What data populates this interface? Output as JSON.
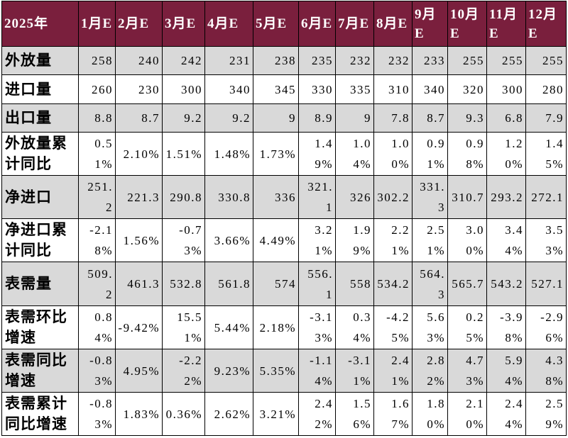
{
  "chart_data": {
    "type": "table",
    "columns": [
      "2025年",
      "1月E",
      "2月E",
      "3月E",
      "4月E",
      "5月E",
      "6月E",
      "7月E",
      "8月E",
      "9月E",
      "10月E",
      "11月E",
      "12月E"
    ],
    "rows": [
      {
        "label": "外放量",
        "values": [
          "258",
          "240",
          "242",
          "231",
          "238",
          "235",
          "232",
          "232",
          "233",
          "255",
          "255",
          "255"
        ]
      },
      {
        "label": "进口量",
        "values": [
          "260",
          "230",
          "300",
          "340",
          "345",
          "330",
          "335",
          "310",
          "340",
          "320",
          "300",
          "280"
        ]
      },
      {
        "label": "出口量",
        "values": [
          "8.8",
          "8.7",
          "9.2",
          "9.2",
          "9",
          "8.9",
          "9",
          "7.8",
          "8.7",
          "9.3",
          "6.8",
          "7.9"
        ]
      },
      {
        "label": "外放量累计同比",
        "values": [
          "0.51%",
          "2.10%",
          "1.51%",
          "1.48%",
          "1.73%",
          "1.49%",
          "1.04%",
          "1.00%",
          "0.91%",
          "0.98%",
          "1.20%",
          "1.45%"
        ]
      },
      {
        "label": "净进口",
        "values": [
          "251.2",
          "221.3",
          "290.8",
          "330.8",
          "336",
          "321.1",
          "326",
          "302.2",
          "331.3",
          "310.7",
          "293.2",
          "272.1"
        ]
      },
      {
        "label": "净进口累计同比",
        "values": [
          "-2.18%",
          "1.56%",
          "-0.73%",
          "3.66%",
          "4.49%",
          "3.21%",
          "1.99%",
          "2.21%",
          "2.51%",
          "3.00%",
          "3.44%",
          "3.53%"
        ]
      },
      {
        "label": "表需量",
        "values": [
          "509.2",
          "461.3",
          "532.8",
          "561.8",
          "574",
          "556.1",
          "558",
          "534.2",
          "564.3",
          "565.7",
          "543.2",
          "527.1"
        ]
      },
      {
        "label": "表需环比增速",
        "values": [
          "0.84%",
          "-9.42%",
          "15.51%",
          "5.44%",
          "2.18%",
          "-3.13%",
          "0.34%",
          "-4.25%",
          "5.63%",
          "0.25%",
          "-3.98%",
          "-2.96%"
        ]
      },
      {
        "label": "表需同比增速",
        "values": [
          "-0.83%",
          "4.95%",
          "-2.22%",
          "9.23%",
          "5.35%",
          "-1.14%",
          "-3.11%",
          "2.41%",
          "2.82%",
          "4.73%",
          "5.94%",
          "4.38%"
        ]
      },
      {
        "label": "表需累计同比增速",
        "values": [
          "-0.83%",
          "1.83%",
          "0.36%",
          "2.62%",
          "3.21%",
          "2.42%",
          "1.56%",
          "1.67%",
          "1.80%",
          "2.10%",
          "2.44%",
          "2.59%"
        ]
      }
    ]
  },
  "colors": {
    "header_bg": "#7A1F3D",
    "header_text": "#FFFFFF",
    "band_bg": "#D9D9D9",
    "plain_bg": "#FFFFFF",
    "grid_line": "#000000"
  }
}
